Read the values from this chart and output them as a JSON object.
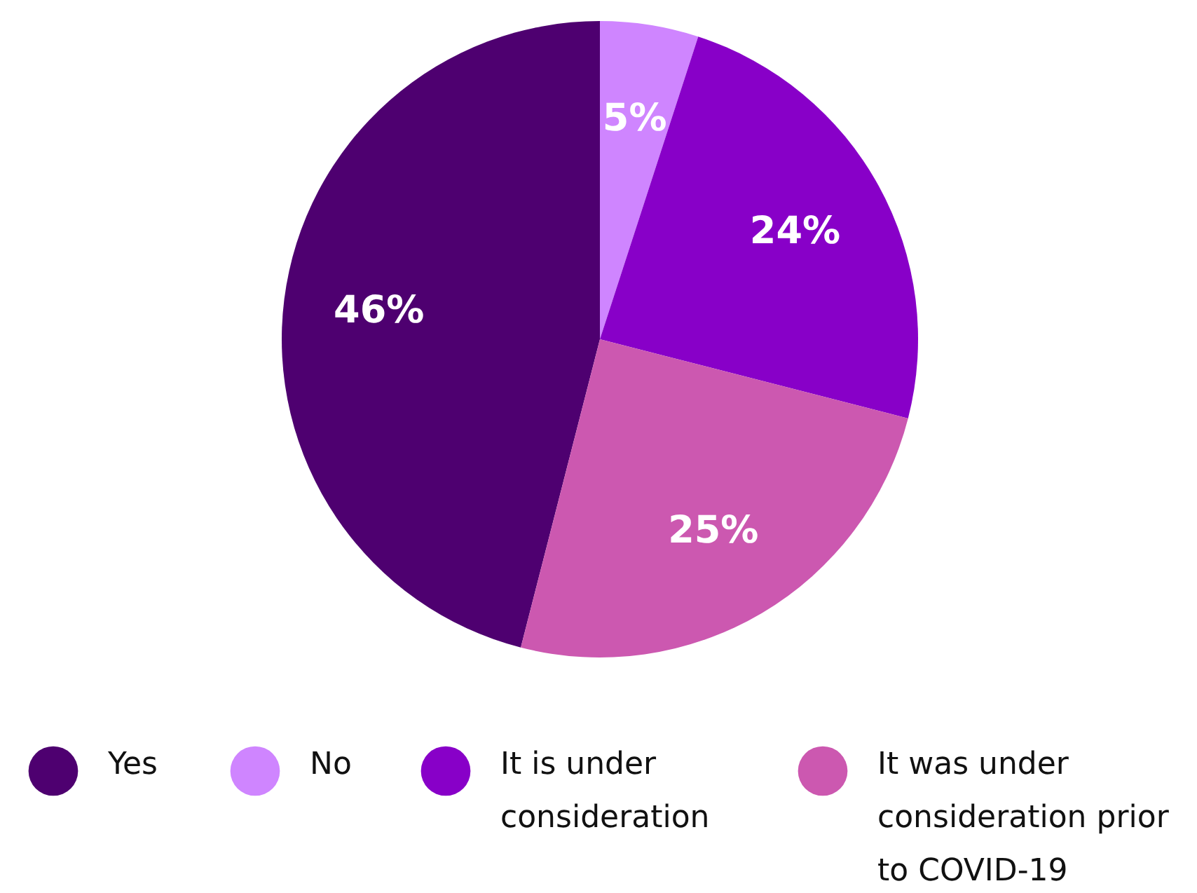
{
  "chart_data": {
    "type": "pie",
    "categories": [
      "Yes",
      "No",
      "It is under consideration",
      "It was under consideration prior to COVID-19"
    ],
    "values": [
      46,
      5,
      24,
      25
    ],
    "colors": [
      "#4e0070",
      "#cf85ff",
      "#8800c8",
      "#cc58b0"
    ],
    "value_labels": [
      "46%",
      "5%",
      "24%",
      "25%"
    ],
    "legend": "bottom"
  }
}
